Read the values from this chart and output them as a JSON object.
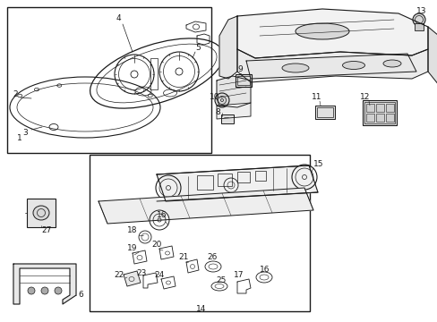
{
  "bg": "#ffffff",
  "lc": "#1a1a1a",
  "fs": 6.5,
  "fig_w": 4.89,
  "fig_h": 3.6,
  "dpi": 100
}
